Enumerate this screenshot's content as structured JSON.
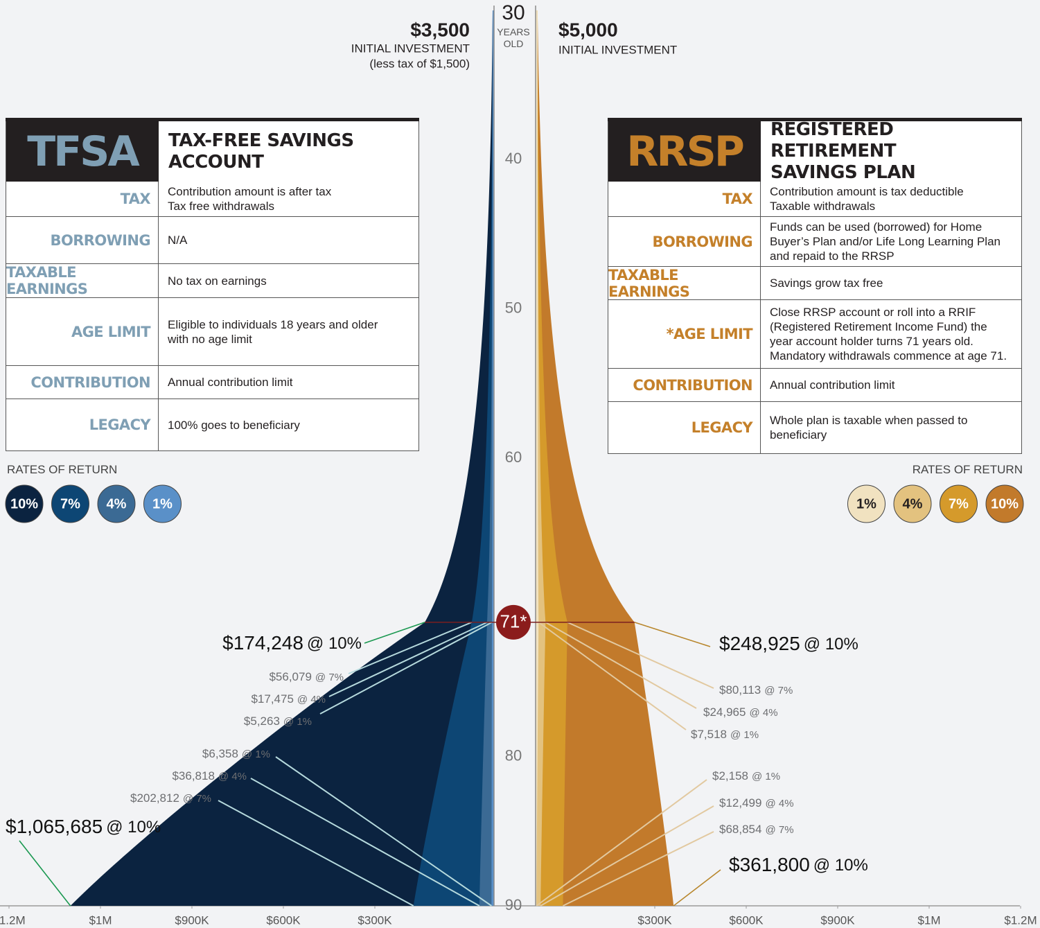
{
  "chart_data": {
    "type": "area",
    "ylabel": "YEARS\nOLD",
    "ylim": [
      30,
      90
    ],
    "yticks": [
      30,
      40,
      50,
      60,
      80,
      90
    ],
    "marker": {
      "value": 71,
      "label": "71*"
    },
    "x": [
      71,
      90
    ],
    "xlim": [
      0,
      1200000
    ],
    "xticks": [
      {
        "value": 300000,
        "label": "$300K"
      },
      {
        "value": 600000,
        "label": "$600K"
      },
      {
        "value": 900000,
        "label": "$900K"
      },
      {
        "value": 1000000,
        "label": "$1M"
      },
      {
        "value": 1200000,
        "label": "$1.2M"
      }
    ],
    "rates_title": "RATES OF RETURN",
    "panels": [
      {
        "abbr": "TFSA",
        "title": "TAX-FREE SAVINGS\nACCOUNT",
        "side": "left",
        "accent": "#7f9fb4",
        "initial": 3500,
        "initial_label": "$3,500",
        "initial_text": "INITIAL INVESTMENT",
        "initial_note": "(less tax of $1,500)",
        "rows": [
          {
            "label": "TAX",
            "text": "Contribution amount is after tax\nTax free withdrawals"
          },
          {
            "label": "BORROWING",
            "text": "N/A"
          },
          {
            "label": "TAXABLE EARNINGS",
            "text": "No tax on earnings"
          },
          {
            "label": "AGE LIMIT",
            "text": "Eligible to individuals 18 years and older\nwith no age limit"
          },
          {
            "label": "CONTRIBUTION",
            "text": "Annual contribution limit"
          },
          {
            "label": "LEGACY",
            "text": "100% goes to beneficiary"
          }
        ],
        "series": [
          {
            "name": "10%",
            "color": "#0b2340",
            "label_color": "#ffffff",
            "values": [
              174248,
              1065685
            ],
            "value_labels": [
              "$174,248",
              "$1,065,685"
            ],
            "rate_label": "@ 10%"
          },
          {
            "name": "7%",
            "color": "#0d4674",
            "label_color": "#ffffff",
            "values": [
              56079,
              202812
            ],
            "value_labels": [
              "$56,079",
              "$202,812"
            ],
            "rate_label": "@ 7%"
          },
          {
            "name": "4%",
            "color": "#3b6a94",
            "label_color": "#ffffff",
            "values": [
              17475,
              36818
            ],
            "value_labels": [
              "$17,475",
              "$36,818"
            ],
            "rate_label": "@ 4%"
          },
          {
            "name": "1%",
            "color": "#5a90c8",
            "label_color": "#ffffff",
            "values": [
              5263,
              6358
            ],
            "value_labels": [
              "$5,263",
              "$6,358"
            ],
            "rate_label": "@ 1%"
          }
        ]
      },
      {
        "abbr": "RRSP",
        "title": "REGISTERED RETIREMENT\nSAVINGS PLAN",
        "side": "right",
        "accent": "#c4802a",
        "initial": 5000,
        "initial_label": "$5,000",
        "initial_text": "INITIAL INVESTMENT",
        "rows": [
          {
            "label": "TAX",
            "text": "Contribution amount is tax deductible\nTaxable withdrawals"
          },
          {
            "label": "BORROWING",
            "text": "Funds can be used (borrowed) for Home\nBuyer’s Plan and/or Life Long Learning Plan\nand repaid to the RRSP"
          },
          {
            "label": "TAXABLE EARNINGS",
            "text": "Savings grow tax free"
          },
          {
            "label": "*AGE LIMIT",
            "text": "Close RRSP account or roll into a RRIF\n(Registered Retirement Income Fund) the\nyear account holder turns 71 years old.\nMandatory withdrawals commence at age 71."
          },
          {
            "label": "CONTRIBUTION",
            "text": "Annual contribution limit"
          },
          {
            "label": "LEGACY",
            "text": "Whole plan is taxable when passed to\nbeneficiary"
          }
        ],
        "series": [
          {
            "name": "10%",
            "color": "#c27a2b",
            "label_color": "#ffffff",
            "values": [
              248925,
              361800
            ],
            "value_labels": [
              "$248,925",
              "$361,800"
            ],
            "rate_label": "@ 10%"
          },
          {
            "name": "7%",
            "color": "#d59a2b",
            "label_color": "#ffffff",
            "values": [
              80113,
              68854
            ],
            "value_labels": [
              "$80,113",
              "$68,854"
            ],
            "rate_label": "@ 7%"
          },
          {
            "name": "4%",
            "color": "#e3c27f",
            "label_color": "#231f20",
            "values": [
              24965,
              12499
            ],
            "value_labels": [
              "$24,965",
              "$12,499"
            ],
            "rate_label": "@ 4%"
          },
          {
            "name": "1%",
            "color": "#f1e2c0",
            "label_color": "#231f20",
            "values": [
              7518,
              2158
            ],
            "value_labels": [
              "$7,518",
              "$2,158"
            ],
            "rate_label": "@ 1%"
          }
        ]
      }
    ]
  }
}
